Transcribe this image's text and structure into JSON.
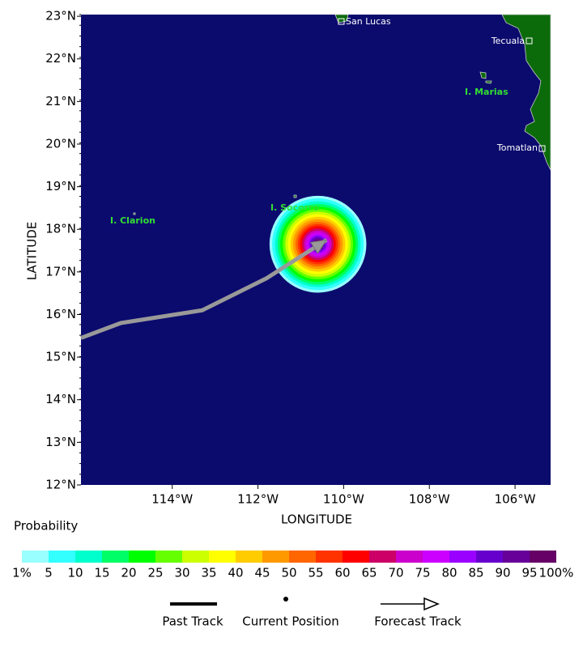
{
  "chart_data": {
    "type": "map",
    "xlabel": "LONGITUDE",
    "ylabel": "LATITUDE",
    "xlim": [
      -116.13,
      -105.17
    ],
    "ylim": [
      12,
      23.04
    ],
    "xticks": [
      {
        "value": -114,
        "label": "114°W"
      },
      {
        "value": -112,
        "label": "112°W"
      },
      {
        "value": -110,
        "label": "110°W"
      },
      {
        "value": -108,
        "label": "108°W"
      },
      {
        "value": -106,
        "label": "106°W"
      }
    ],
    "yticks": [
      {
        "value": 12,
        "label": "12°N"
      },
      {
        "value": 13,
        "label": "13°N"
      },
      {
        "value": 14,
        "label": "14°N"
      },
      {
        "value": 15,
        "label": "15°N"
      },
      {
        "value": 16,
        "label": "16°N"
      },
      {
        "value": 17,
        "label": "17°N"
      },
      {
        "value": 18,
        "label": "18°N"
      },
      {
        "value": 19,
        "label": "19°N"
      },
      {
        "value": 20,
        "label": "20°N"
      },
      {
        "value": 21,
        "label": "21°N"
      },
      {
        "value": 22,
        "label": "22°N"
      },
      {
        "value": 23,
        "label": "23°N"
      }
    ],
    "places": [
      "San Lucas",
      "Tecuala",
      "I. Marias",
      "Tomatlan",
      "I. Socorro",
      "I. Clarion"
    ],
    "probability": {
      "title": "Probability",
      "center": [
        -110.6,
        17.65
      ],
      "levels": [
        1,
        5,
        10,
        15,
        20,
        25,
        30,
        35,
        40,
        45,
        50,
        55,
        60,
        65,
        70,
        75,
        80,
        85,
        90,
        95
      ],
      "radii": [
        1.13,
        1.07,
        1.0,
        0.94,
        0.88,
        0.82,
        0.76,
        0.7,
        0.64,
        0.58,
        0.52,
        0.47,
        0.42,
        0.37,
        0.32,
        0.27,
        0.22,
        0.18,
        0.14,
        0.1
      ],
      "colors": [
        "#99ffff",
        "#33ffff",
        "#00ffcc",
        "#00ff66",
        "#00ff00",
        "#66ff00",
        "#ccff00",
        "#ffff00",
        "#ffcc00",
        "#ff9900",
        "#ff6600",
        "#ff3300",
        "#ff0000",
        "#cc0066",
        "#cc00cc",
        "#cc00ff",
        "#9900ff",
        "#6600cc",
        "#660099",
        "#660066"
      ],
      "bounds": [
        {
          "value": 1,
          "label": "1%"
        },
        5,
        10,
        15,
        20,
        25,
        30,
        35,
        40,
        45,
        50,
        55,
        60,
        65,
        70,
        75,
        80,
        85,
        90,
        95,
        {
          "value": 100,
          "label": "100%"
        }
      ]
    },
    "track": {
      "color": "#999999",
      "x": [
        -116.13,
        -115.2,
        -113.3,
        -111.8,
        -110.4
      ],
      "y": [
        15.45,
        15.8,
        16.1,
        16.85,
        17.75
      ]
    },
    "legend": [
      "Past Track",
      "Current Position",
      "Forecast Track"
    ]
  }
}
